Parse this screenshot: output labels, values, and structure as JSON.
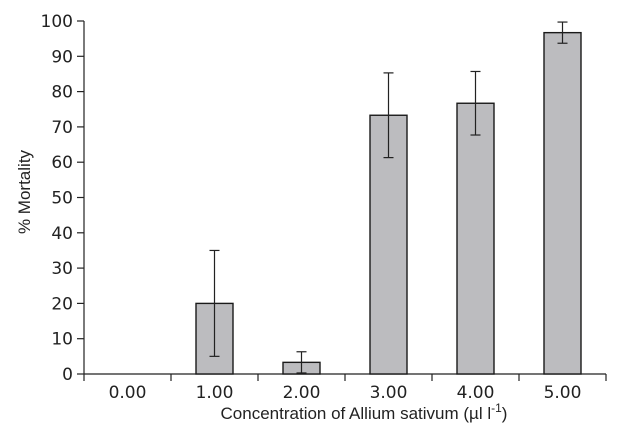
{
  "chart_data": {
    "type": "bar",
    "categories": [
      "0.00",
      "1.00",
      "2.00",
      "3.00",
      "4.00",
      "5.00"
    ],
    "values": [
      0,
      20,
      3.3,
      73.3,
      76.7,
      96.7
    ],
    "error": [
      0,
      15,
      3,
      12,
      9,
      3
    ],
    "ylabel": "% Mortality",
    "xlabel": {
      "main": "Concentration of Allium sativum (µl l",
      "superscript": "-1",
      "close": ")"
    },
    "ylim": [
      0,
      100
    ],
    "yticks": [
      "0",
      "10",
      "20",
      "30",
      "40",
      "50",
      "60",
      "70",
      "80",
      "90",
      "100"
    ],
    "bar_color": "#bcbcbf",
    "grid": false,
    "legend": "none"
  }
}
